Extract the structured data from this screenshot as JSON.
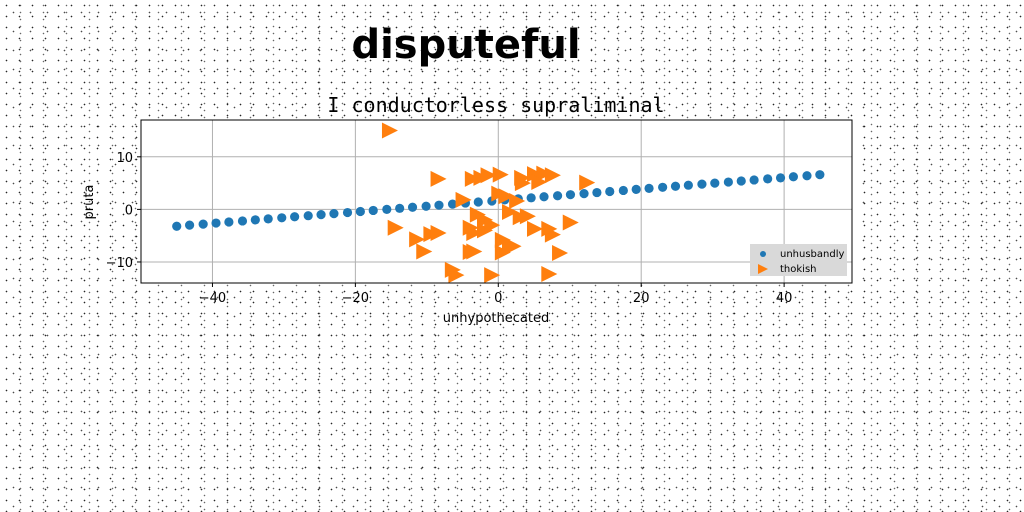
{
  "chart_data": {
    "type": "scatter",
    "main_title": "disputeful",
    "title": "I conductorless supraliminal",
    "xlabel": "unhypothecated",
    "ylabel": "pruta",
    "xlim": [
      -50,
      49.5
    ],
    "ylim": [
      -14,
      17
    ],
    "xticks": [
      -40,
      -20,
      0,
      20,
      40
    ],
    "yticks": [
      -10,
      0,
      10
    ],
    "xtick_labels": [
      "−40",
      "−20",
      "0",
      "20",
      "40"
    ],
    "ytick_labels": [
      "−10",
      "0",
      "10"
    ],
    "grid": true,
    "legend_position": "lower-right",
    "series": [
      {
        "name": "unhusbandly",
        "marker": "circle",
        "color": "#1f77b4",
        "x": [
          -45,
          -43.2,
          -41.3,
          -39.5,
          -37.7,
          -35.8,
          -34,
          -32.2,
          -30.3,
          -28.5,
          -26.6,
          -24.8,
          -23,
          -21.1,
          -19.3,
          -17.5,
          -15.6,
          -13.8,
          -12,
          -10.1,
          -8.3,
          -6.4,
          -4.6,
          -2.8,
          -0.9,
          0.9,
          2.8,
          4.6,
          6.4,
          8.3,
          10.1,
          12,
          13.8,
          15.6,
          17.5,
          19.3,
          21.1,
          23,
          24.8,
          26.6,
          28.5,
          30.3,
          32.2,
          34,
          35.8,
          37.7,
          39.5,
          41.3,
          43.2,
          45
        ],
        "y": [
          -3.2,
          -3,
          -2.8,
          -2.6,
          -2.4,
          -2.2,
          -2,
          -1.8,
          -1.6,
          -1.4,
          -1.2,
          -1,
          -0.8,
          -0.6,
          -0.4,
          -0.2,
          0,
          0.2,
          0.4,
          0.6,
          0.8,
          1,
          1.2,
          1.4,
          1.6,
          1.8,
          2,
          2.2,
          2.4,
          2.6,
          2.8,
          3,
          3.2,
          3.4,
          3.6,
          3.8,
          4,
          4.2,
          4.4,
          4.6,
          4.8,
          5,
          5.2,
          5.4,
          5.6,
          5.8,
          6,
          6.2,
          6.4,
          6.6
        ]
      },
      {
        "name": "thokish",
        "marker": "triangle-right",
        "color": "#ff7f0e",
        "x": [
          -15.3,
          -8.5,
          -3.7,
          -2.5,
          -1.5,
          0.2,
          3.2,
          5,
          6.3,
          7.5,
          3.3,
          5.6,
          12.3,
          -5,
          0,
          1,
          2.5,
          -3,
          -2,
          1.5,
          3,
          4,
          -4,
          -2,
          -1,
          -14.5,
          -11.5,
          -9.5,
          -8.5,
          -4,
          -3.5,
          0.5,
          2,
          5,
          7.5,
          10,
          -10.5,
          -3.5,
          0.5,
          1.5,
          7,
          8.5,
          -6.5,
          -6,
          -1,
          7
        ],
        "y": [
          15,
          5.8,
          5.8,
          6,
          6.5,
          6.6,
          6,
          6.7,
          6.8,
          6.5,
          5,
          5.2,
          5.1,
          1.8,
          3,
          2.5,
          1.6,
          -1,
          -2,
          -0.5,
          -1.5,
          -1.3,
          -3.5,
          -4,
          -3,
          -3.5,
          -5.7,
          -4.7,
          -4.5,
          -8.1,
          -4.5,
          -5.8,
          -7,
          -3.7,
          -4.8,
          -2.5,
          -8,
          -8,
          -8.2,
          -7,
          -3.7,
          -8.3,
          -11.5,
          -12.5,
          -12.5,
          -12.3
        ]
      }
    ]
  }
}
